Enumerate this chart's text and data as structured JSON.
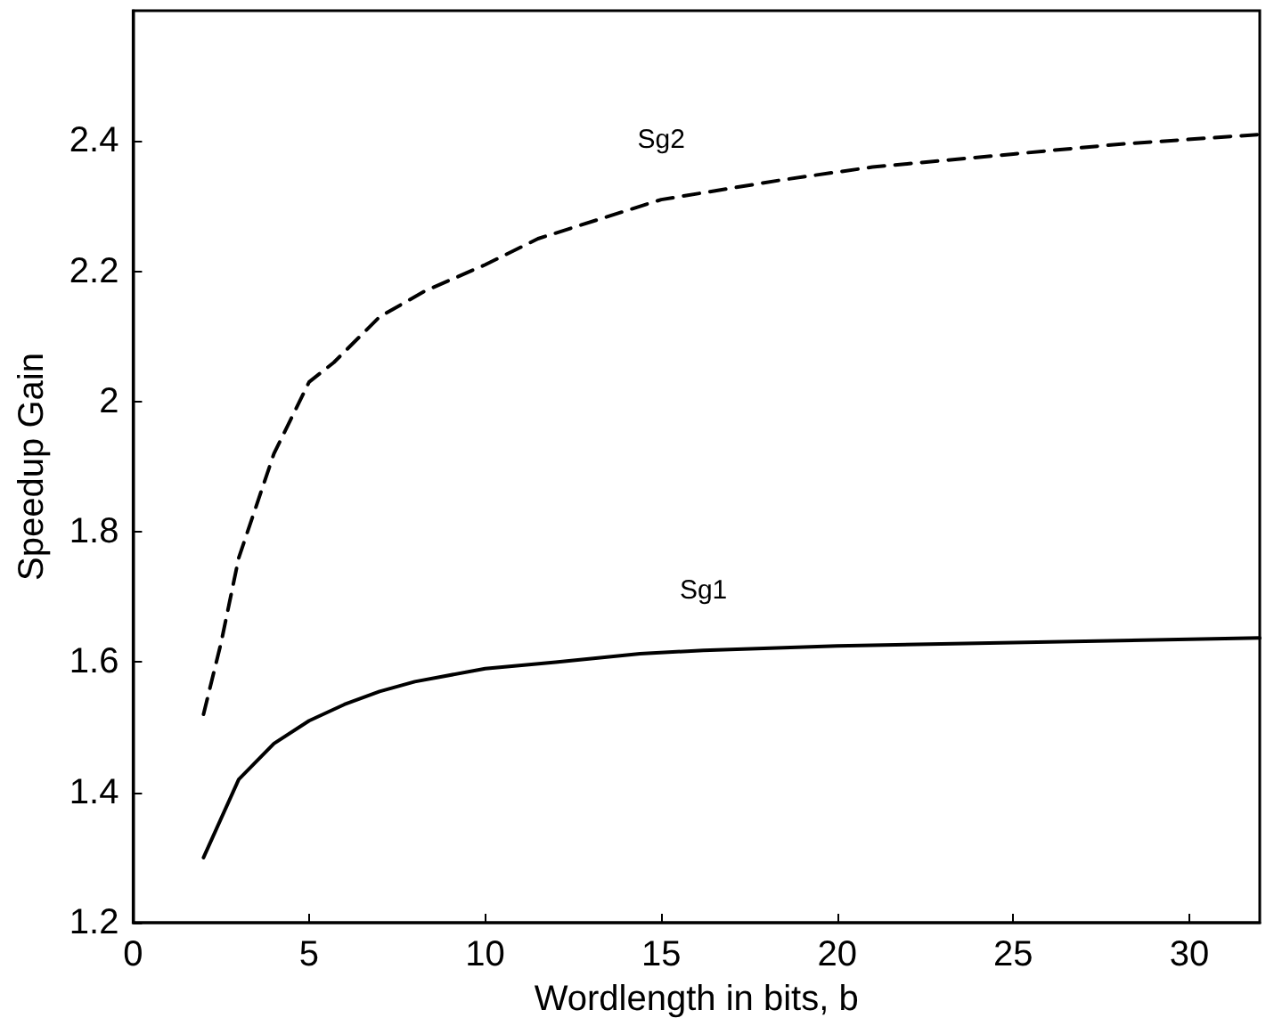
{
  "chart_data": {
    "type": "line",
    "xlabel": "Wordlength in bits, b",
    "ylabel": "Speedup Gain",
    "xlim": [
      0,
      32
    ],
    "xticks": [
      0,
      5,
      10,
      15,
      20,
      25,
      30
    ],
    "ylim": [
      1.2,
      2.6
    ],
    "yticks": [
      1.2,
      1.4,
      1.6,
      1.8,
      2,
      2.2,
      2.4
    ],
    "grid": false,
    "legend": false,
    "series": [
      {
        "name": "Sg2",
        "color": "#000000",
        "line_style": "dashed",
        "x": [
          2,
          2.5,
          3,
          4,
          5,
          5.7,
          7,
          8.3,
          10,
          11.5,
          15,
          18.4,
          21,
          25,
          28,
          32
        ],
        "values": [
          1.52,
          1.63,
          1.76,
          1.92,
          2.03,
          2.06,
          2.13,
          2.17,
          2.21,
          2.25,
          2.31,
          2.34,
          2.36,
          2.38,
          2.395,
          2.41
        ]
      },
      {
        "name": "Sg1",
        "color": "#000000",
        "line_style": "solid",
        "x": [
          2,
          3,
          4,
          5,
          6,
          7,
          8,
          10,
          12,
          14.4,
          16.2,
          20,
          25,
          32
        ],
        "values": [
          1.3,
          1.42,
          1.475,
          1.51,
          1.535,
          1.555,
          1.57,
          1.59,
          1.6,
          1.613,
          1.618,
          1.625,
          1.63,
          1.637
        ]
      }
    ]
  }
}
